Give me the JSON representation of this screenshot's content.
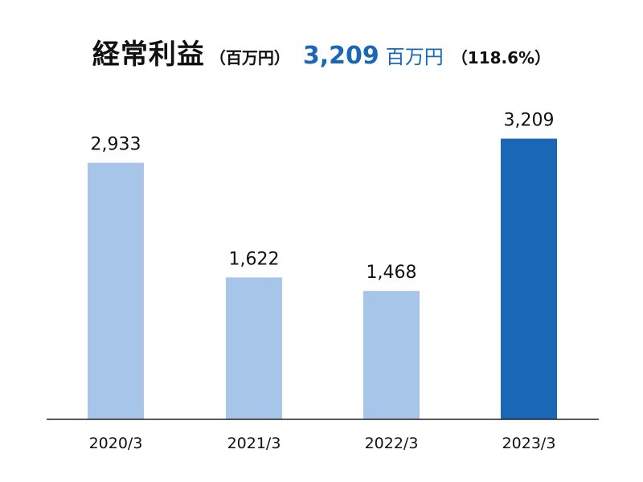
{
  "header": {
    "title": "経常利益",
    "unit": "（百万円）",
    "highlight_value": "3,209",
    "highlight_unit": "百万円",
    "ratio": "（118.6%）"
  },
  "colors": {
    "bar_past": "#a7c5e8",
    "bar_current": "#1a68b5",
    "axis": "#222222",
    "text": "#111111"
  },
  "chart_data": {
    "type": "bar",
    "title": "経常利益",
    "categories": [
      "2020/3",
      "2021/3",
      "2022/3",
      "2023/3"
    ],
    "values": [
      2933,
      1622,
      1468,
      3209
    ],
    "value_labels": [
      "2,933",
      "1,622",
      "1,468",
      "3,209"
    ],
    "highlight_index": 3,
    "xlabel": "",
    "ylabel": "",
    "ylim": [
      0,
      3600
    ],
    "grid": false,
    "legend": "none"
  }
}
